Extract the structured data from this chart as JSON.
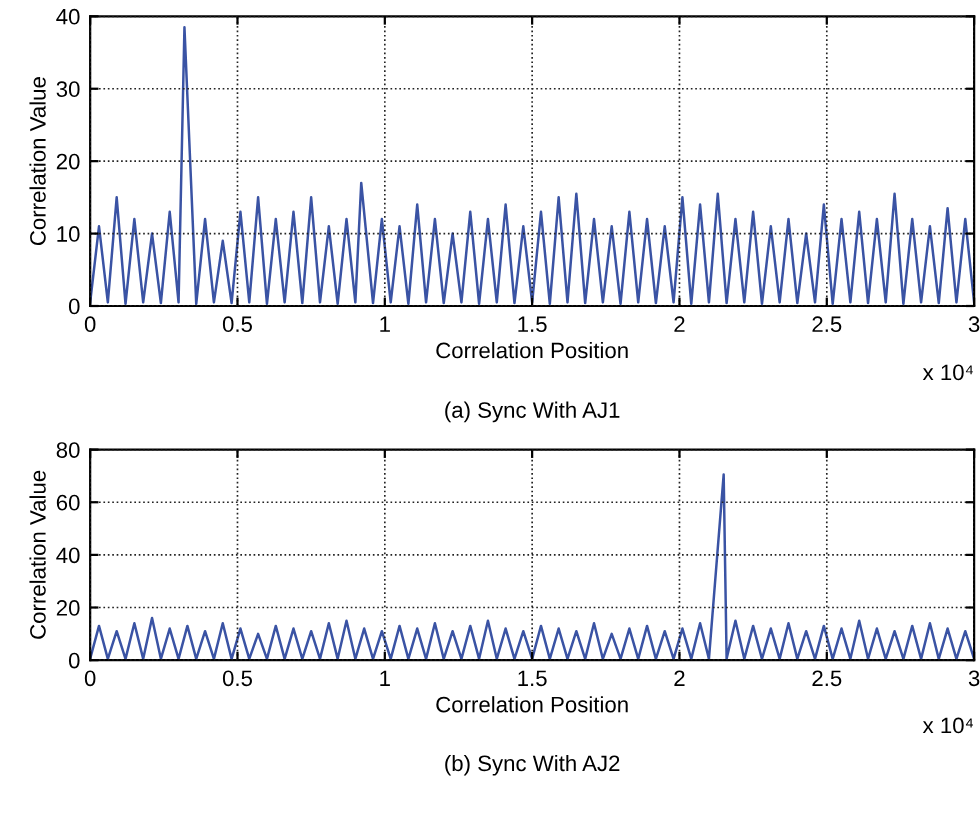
{
  "chart_data": [
    {
      "type": "line",
      "xlabel": "Correlation Position",
      "ylabel": "Correlation Value",
      "annotations": [
        "x 10⁴",
        "(a) Sync With AJ1"
      ],
      "series": [
        {
          "color": "#3a53a4",
          "x": [
            0,
            0.03,
            0.06,
            0.09,
            0.12,
            0.15,
            0.18,
            0.21,
            0.24,
            0.27,
            0.3,
            0.32,
            0.36,
            0.39,
            0.42,
            0.45,
            0.48,
            0.51,
            0.54,
            0.57,
            0.6,
            0.63,
            0.66,
            0.69,
            0.72,
            0.75,
            0.78,
            0.81,
            0.84,
            0.87,
            0.9,
            0.92,
            0.96,
            0.99,
            1.02,
            1.05,
            1.08,
            1.11,
            1.14,
            1.17,
            1.2,
            1.23,
            1.26,
            1.29,
            1.32,
            1.35,
            1.38,
            1.41,
            1.44,
            1.47,
            1.5,
            1.53,
            1.56,
            1.59,
            1.62,
            1.65,
            1.68,
            1.71,
            1.74,
            1.77,
            1.8,
            1.83,
            1.86,
            1.89,
            1.92,
            1.95,
            1.98,
            2.01,
            2.04,
            2.07,
            2.1,
            2.13,
            2.16,
            2.19,
            2.22,
            2.25,
            2.28,
            2.31,
            2.34,
            2.37,
            2.4,
            2.43,
            2.46,
            2.49,
            2.52,
            2.55,
            2.58,
            2.61,
            2.64,
            2.67,
            2.7,
            2.73,
            2.76,
            2.79,
            2.82,
            2.85,
            2.88,
            2.91,
            2.94,
            2.97,
            3
          ],
          "values": [
            0.5,
            11,
            0.5,
            15,
            0.3,
            12,
            0.5,
            10,
            0.4,
            13,
            0.5,
            38.5,
            0.3,
            12,
            0.5,
            9,
            0.4,
            13,
            0.5,
            15,
            0.3,
            12,
            0.5,
            13,
            0.4,
            15,
            0.5,
            11,
            0.3,
            12,
            0.5,
            17,
            0.4,
            12,
            0.5,
            11,
            0.3,
            14,
            0.5,
            12,
            0.4,
            10,
            0.5,
            13,
            0.3,
            12,
            0.5,
            14,
            0.4,
            11,
            0.5,
            13,
            0.3,
            15,
            0.5,
            15.5,
            0.4,
            12,
            0.5,
            11,
            0.3,
            13,
            0.5,
            12,
            0.4,
            11,
            0.5,
            15,
            0.3,
            14,
            0.5,
            15.5,
            0.4,
            12,
            0.5,
            13,
            0.3,
            11,
            0.5,
            12,
            0.4,
            10,
            0.5,
            14,
            0.3,
            12,
            0.5,
            13,
            0.4,
            12,
            0.5,
            15.5,
            0.3,
            12,
            0.5,
            11,
            0.4,
            13.5,
            0.5,
            12,
            0.5
          ]
        }
      ],
      "xlim": [
        0,
        3
      ],
      "xticks": [
        0,
        0.5,
        1,
        1.5,
        2,
        2.5,
        3
      ],
      "ylim": [
        0,
        40
      ],
      "yticks": [
        0,
        10,
        20,
        30,
        40
      ],
      "grid": true,
      "line_style": "solid"
    },
    {
      "type": "line",
      "xlabel": "Correlation Position",
      "ylabel": "Correlation Value",
      "annotations": [
        "x 10⁴",
        "(b) Sync With AJ2"
      ],
      "series": [
        {
          "color": "#3a53a4",
          "x": [
            0,
            0.03,
            0.06,
            0.09,
            0.12,
            0.15,
            0.18,
            0.21,
            0.24,
            0.27,
            0.3,
            0.33,
            0.36,
            0.39,
            0.42,
            0.45,
            0.48,
            0.51,
            0.54,
            0.57,
            0.6,
            0.63,
            0.66,
            0.69,
            0.72,
            0.75,
            0.78,
            0.81,
            0.84,
            0.87,
            0.9,
            0.93,
            0.96,
            0.99,
            1.02,
            1.05,
            1.08,
            1.11,
            1.14,
            1.17,
            1.2,
            1.23,
            1.26,
            1.29,
            1.32,
            1.35,
            1.38,
            1.41,
            1.44,
            1.47,
            1.5,
            1.53,
            1.56,
            1.59,
            1.62,
            1.65,
            1.68,
            1.71,
            1.74,
            1.77,
            1.8,
            1.83,
            1.86,
            1.89,
            1.92,
            1.95,
            1.98,
            2.01,
            2.04,
            2.07,
            2.1,
            2.15,
            2.16,
            2.19,
            2.22,
            2.25,
            2.28,
            2.31,
            2.34,
            2.37,
            2.4,
            2.43,
            2.46,
            2.49,
            2.52,
            2.55,
            2.58,
            2.61,
            2.64,
            2.67,
            2.7,
            2.73,
            2.76,
            2.79,
            2.82,
            2.85,
            2.88,
            2.91,
            2.94,
            2.97,
            3
          ],
          "values": [
            0.5,
            13,
            0.5,
            11,
            0.5,
            14,
            0.5,
            16,
            0.5,
            12,
            0.5,
            13,
            0.5,
            11,
            0.5,
            14,
            0.5,
            12,
            0.5,
            10,
            0.5,
            13,
            0.5,
            12,
            0.5,
            11,
            0.5,
            14,
            0.5,
            15,
            0.5,
            12,
            0.5,
            11,
            0.5,
            13,
            0.5,
            12,
            0.5,
            14,
            0.5,
            11,
            0.5,
            13,
            0.5,
            15,
            0.5,
            12,
            0.5,
            11,
            0.5,
            13,
            0.5,
            12,
            0.5,
            11,
            0.5,
            14,
            0.5,
            10,
            0.5,
            12,
            0.5,
            13,
            0.5,
            11,
            0.5,
            12,
            0.5,
            14,
            0.5,
            70.5,
            0.5,
            15,
            0.5,
            13,
            0.5,
            12,
            0.5,
            14,
            0.5,
            11,
            0.5,
            13,
            0.5,
            12,
            0.5,
            15,
            0.5,
            12,
            0.5,
            11,
            0.5,
            13,
            0.5,
            14,
            0.5,
            12,
            0.5,
            11,
            0.5
          ]
        }
      ],
      "xlim": [
        0,
        3
      ],
      "xticks": [
        0,
        0.5,
        1,
        1.5,
        2,
        2.5,
        3
      ],
      "ylim": [
        0,
        80
      ],
      "yticks": [
        0,
        20,
        40,
        60,
        80
      ],
      "grid": true,
      "line_style": "solid"
    }
  ]
}
